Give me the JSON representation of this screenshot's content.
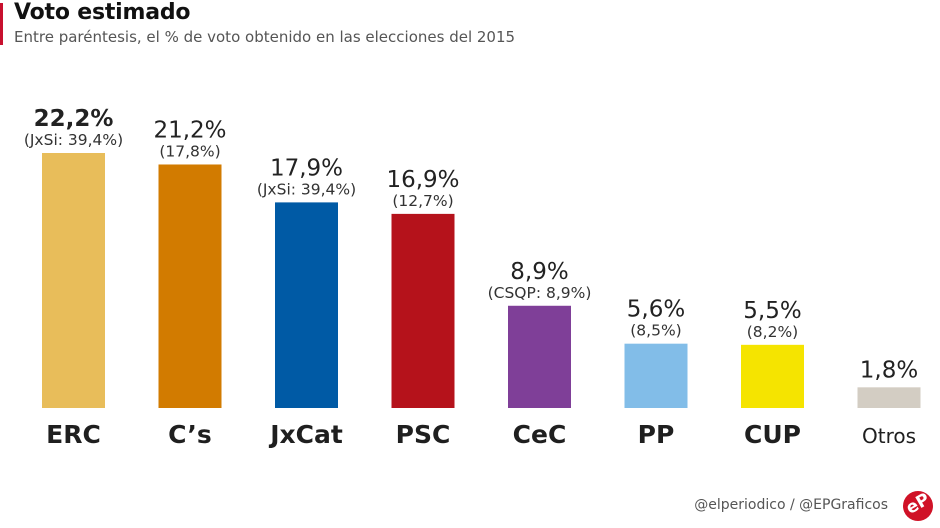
{
  "header": {
    "title": "Voto estimado",
    "subtitle": "Entre paréntesis, el % de voto obtenido en las elecciones del 2015"
  },
  "footer": {
    "credit": "@elperiodico / @EPGraficos",
    "logo_text": "eP"
  },
  "chart_data": {
    "type": "bar",
    "title": "Voto estimado",
    "subtitle": "Entre paréntesis, el % de voto obtenido en las elecciones del 2015",
    "xlabel": "",
    "ylabel": "",
    "ylim": [
      0,
      22.2
    ],
    "grid": false,
    "legend": "none",
    "categories": [
      "ERC",
      "C’s",
      "JxCat",
      "PSC",
      "CeC",
      "PP",
      "CUP",
      "Otros"
    ],
    "values": [
      22.2,
      21.2,
      17.9,
      16.9,
      8.9,
      5.6,
      5.5,
      1.8
    ],
    "value_labels": [
      "22,2%",
      "21,2%",
      "17,9%",
      "16,9%",
      "8,9%",
      "5,6%",
      "5,5%",
      "1,8%"
    ],
    "previous_2015_labels": [
      "(JxSi: 39,4%)",
      "(17,8%)",
      "(JxSi: 39,4%)",
      "(12,7%)",
      "(CSQP: 8,9%)",
      "(8,5%)",
      "(8,2%)",
      ""
    ],
    "previous_2015_values": [
      39.4,
      17.8,
      39.4,
      12.7,
      8.9,
      8.5,
      8.2,
      null
    ],
    "colors": [
      "#e8bd5a",
      "#d27b00",
      "#005aa5",
      "#b5121b",
      "#7f3f98",
      "#82bde8",
      "#f5e400",
      "#d3cdc3"
    ],
    "highlight_index": 0
  }
}
